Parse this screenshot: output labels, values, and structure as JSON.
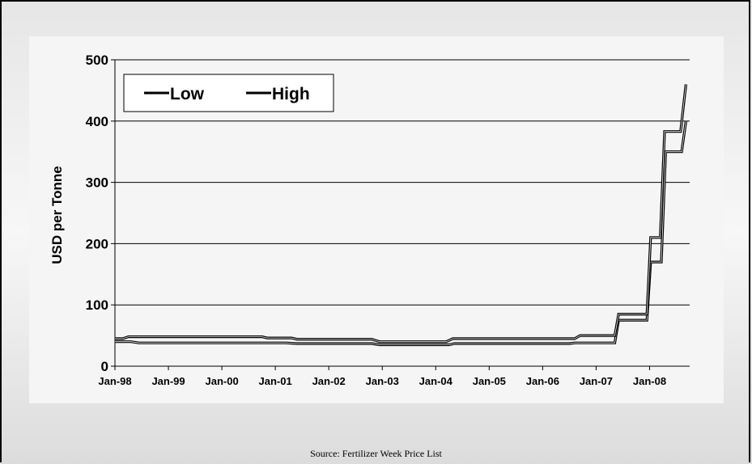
{
  "source_text": "Source: Fertilizer Week Price List",
  "chart_data": {
    "type": "line",
    "title": "",
    "xlabel": "",
    "ylabel": "USD per Tonne",
    "ylim": [
      0,
      500
    ],
    "yticks": [
      0,
      100,
      200,
      300,
      400,
      500
    ],
    "xticks": [
      "Jan-98",
      "Jan-99",
      "Jan-00",
      "Jan-01",
      "Jan-02",
      "Jan-03",
      "Jan-04",
      "Jan-05",
      "Jan-06",
      "Jan-07",
      "Jan-08"
    ],
    "xlim_years": [
      1998.0,
      1998.0,
      2008.75
    ],
    "x_start": "Jan-98",
    "grid": "horizontal",
    "legend_position": "top-left",
    "colors": {
      "line": "#000000",
      "grid": "#000000",
      "background": "#f5f5f5"
    },
    "series": [
      {
        "name": "Low",
        "points": [
          [
            0.0,
            40
          ],
          [
            0.3,
            40
          ],
          [
            0.45,
            38
          ],
          [
            3.2,
            38
          ],
          [
            3.4,
            37
          ],
          [
            4.8,
            37
          ],
          [
            4.95,
            35
          ],
          [
            6.25,
            35
          ],
          [
            6.35,
            37
          ],
          [
            8.5,
            37
          ],
          [
            8.6,
            38
          ],
          [
            9.35,
            38
          ],
          [
            9.42,
            75
          ],
          [
            9.95,
            75
          ],
          [
            10.02,
            170
          ],
          [
            10.22,
            170
          ],
          [
            10.3,
            350
          ],
          [
            10.6,
            350
          ],
          [
            10.68,
            400
          ]
        ]
      },
      {
        "name": "High",
        "points": [
          [
            0.0,
            45
          ],
          [
            0.15,
            45
          ],
          [
            0.25,
            48
          ],
          [
            2.75,
            48
          ],
          [
            2.85,
            46
          ],
          [
            3.3,
            46
          ],
          [
            3.4,
            44
          ],
          [
            4.8,
            44
          ],
          [
            4.95,
            40
          ],
          [
            6.2,
            40
          ],
          [
            6.32,
            45
          ],
          [
            8.6,
            45
          ],
          [
            8.7,
            50
          ],
          [
            9.35,
            50
          ],
          [
            9.42,
            85
          ],
          [
            9.95,
            85
          ],
          [
            10.02,
            210
          ],
          [
            10.2,
            210
          ],
          [
            10.28,
            383
          ],
          [
            10.58,
            383
          ],
          [
            10.68,
            460
          ]
        ]
      }
    ]
  }
}
